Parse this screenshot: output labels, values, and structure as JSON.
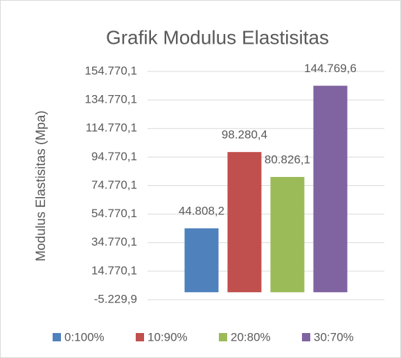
{
  "chart_data": {
    "type": "bar",
    "title": "Grafik Modulus Elastisitas",
    "y_label": "Modulus Elastisitas (Mpa)",
    "categories": [
      null
    ],
    "series": [
      {
        "name": "0:100%",
        "color": "#4f81bd",
        "values": [
          44808.2
        ],
        "value_labels": [
          "44.808,2"
        ]
      },
      {
        "name": "10:90%",
        "color": "#c0504d",
        "values": [
          98280.4
        ],
        "value_labels": [
          "98.280,4"
        ]
      },
      {
        "name": "20:80%",
        "color": "#9bbb59",
        "values": [
          80826.1
        ],
        "value_labels": [
          "80.826,1"
        ]
      },
      {
        "name": "30:70%",
        "color": "#8064a2",
        "values": [
          144769.6
        ],
        "value_labels": [
          "144.769,6"
        ]
      }
    ],
    "ylim": [
      -5229.9,
      154770.1
    ],
    "yticks": [
      {
        "value": -5229.9,
        "label": "-5.229,9"
      },
      {
        "value": 14770.1,
        "label": "14.770,1"
      },
      {
        "value": 34770.1,
        "label": "34.770,1"
      },
      {
        "value": 54770.1,
        "label": "54.770,1"
      },
      {
        "value": 74770.1,
        "label": "74.770,1"
      },
      {
        "value": 94770.1,
        "label": "94.770,1"
      },
      {
        "value": 114770.1,
        "label": "114.770,1"
      },
      {
        "value": 134770.1,
        "label": "134.770,1"
      },
      {
        "value": 154770.1,
        "label": "154.770,1"
      }
    ],
    "grid": true,
    "legend": "bottom"
  }
}
